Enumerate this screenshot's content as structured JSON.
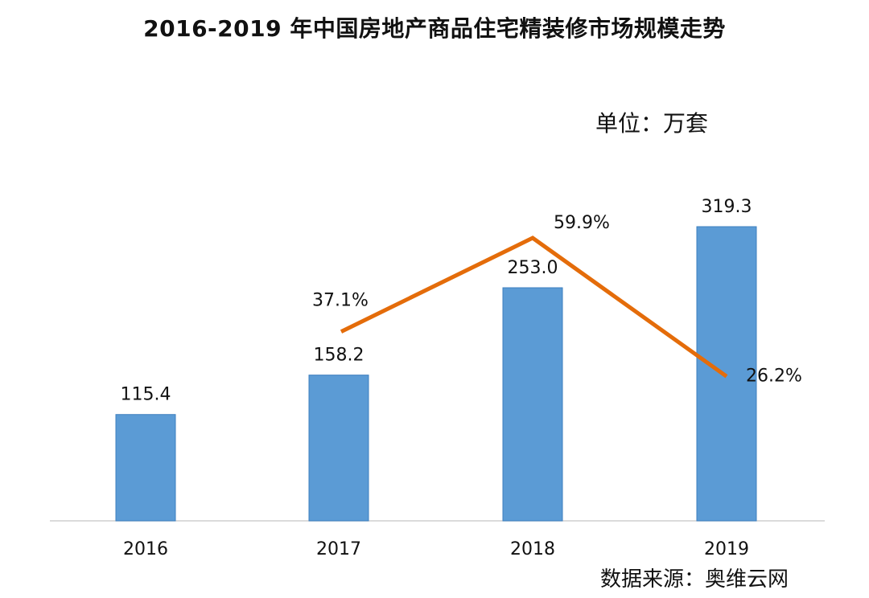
{
  "title": "2016-2019 年中国房地产商品住宅精装修市场规模走势",
  "unit": "单位：万套",
  "source": "数据来源：奥维云网",
  "colors": {
    "bar": "#5b9bd5",
    "line": "#e46c0a"
  },
  "chart_data": {
    "type": "bar",
    "title": "2016-2019 年中国房地产商品住宅精装修市场规模走势",
    "categories": [
      "2016",
      "2017",
      "2018",
      "2019"
    ],
    "ylim": [
      0,
      400
    ],
    "grid": false,
    "series": [
      {
        "type": "bar",
        "values": [
          115.4,
          158.2,
          253.0,
          319.3
        ],
        "labels": [
          "115.4",
          "158.2",
          "253.0",
          "319.3"
        ]
      },
      {
        "type": "line",
        "x": [
          "2017",
          "2018",
          "2019"
        ],
        "values": [
          37.1,
          59.9,
          26.2
        ],
        "labels": [
          "37.1%",
          "59.9%",
          "26.2%"
        ]
      }
    ]
  }
}
